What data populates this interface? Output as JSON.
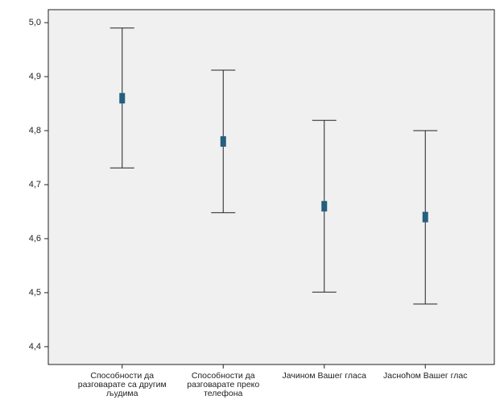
{
  "chart_data": {
    "type": "errorbar",
    "categories": [
      "Способности да разговарате са другим људима",
      "Способности да разговарате преко телефона",
      "Јачином Вашег гласа",
      "Јасноћом Вашег глас"
    ],
    "values": [
      4.86,
      4.78,
      4.66,
      4.64
    ],
    "lower": [
      4.731,
      4.648,
      4.501,
      4.479
    ],
    "upper": [
      4.99,
      4.912,
      4.819,
      4.8
    ],
    "color": "#245f7d",
    "ylim": [
      4.367,
      5.024
    ],
    "yticks": [
      {
        "value": 4.4,
        "label": "4,4"
      },
      {
        "value": 4.5,
        "label": "4,5"
      },
      {
        "value": 4.6,
        "label": "4,6"
      },
      {
        "value": 4.7,
        "label": "4,7"
      },
      {
        "value": 4.8,
        "label": "4,8"
      },
      {
        "value": 4.9,
        "label": "4,9"
      },
      {
        "value": 5.0,
        "label": "5,0"
      }
    ]
  }
}
